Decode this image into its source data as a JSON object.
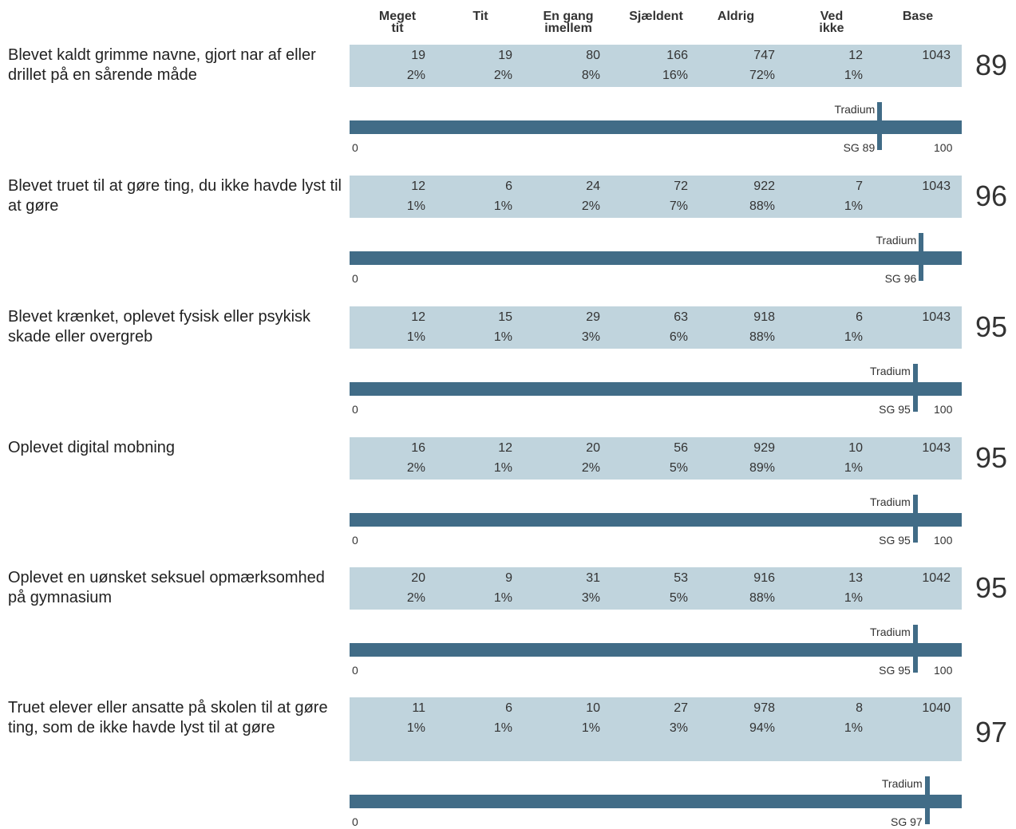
{
  "header": {
    "columns": [
      "Meget\ntit",
      "Tit",
      "En gang\nimellem",
      "Sjældent",
      "Aldrig",
      "Ved\nikke",
      "Base"
    ]
  },
  "reference": {
    "label": "Tradium",
    "axis_min": "0",
    "axis_max": "100"
  },
  "chart_data": {
    "type": "table",
    "columns": [
      "Meget tit",
      "Tit",
      "En gang imellem",
      "Sjældent",
      "Aldrig",
      "Ved ikke",
      "Base"
    ],
    "axis": {
      "min": 0,
      "max": 100
    },
    "rows": [
      {
        "question": "Blevet kaldt grimme navne, gjort nar af eller drillet på en sårende måde",
        "counts": [
          "19",
          "19",
          "80",
          "166",
          "747",
          "12",
          "1043"
        ],
        "percents": [
          "2%",
          "2%",
          "8%",
          "16%",
          "72%",
          "1%"
        ],
        "score": 89,
        "score_label": "89",
        "sg_label": "SG 89"
      },
      {
        "question": "Blevet truet til at gøre ting, du ikke havde lyst til at gøre",
        "counts": [
          "12",
          "6",
          "24",
          "72",
          "922",
          "7",
          "1043"
        ],
        "percents": [
          "1%",
          "1%",
          "2%",
          "7%",
          "88%",
          "1%"
        ],
        "score": 96,
        "score_label": "96",
        "sg_label": "SG 96"
      },
      {
        "question": "Blevet krænket, oplevet fysisk eller psykisk skade eller overgreb",
        "counts": [
          "12",
          "15",
          "29",
          "63",
          "918",
          "6",
          "1043"
        ],
        "percents": [
          "1%",
          "1%",
          "3%",
          "6%",
          "88%",
          "1%"
        ],
        "score": 95,
        "score_label": "95",
        "sg_label": "SG 95"
      },
      {
        "question": "Oplevet digital mobning",
        "counts": [
          "16",
          "12",
          "20",
          "56",
          "929",
          "10",
          "1043"
        ],
        "percents": [
          "2%",
          "1%",
          "2%",
          "5%",
          "89%",
          "1%"
        ],
        "score": 95,
        "score_label": "95",
        "sg_label": "SG 95"
      },
      {
        "question": "Oplevet en uønsket seksuel opmærksomhed på gymnasium",
        "counts": [
          "20",
          "9",
          "31",
          "53",
          "916",
          "13",
          "1042"
        ],
        "percents": [
          "2%",
          "1%",
          "3%",
          "5%",
          "88%",
          "1%"
        ],
        "score": 95,
        "score_label": "95",
        "sg_label": "SG 95"
      },
      {
        "question": "Truet elever eller ansatte på skolen til at gøre ting, som de ikke havde lyst til at gøre",
        "counts": [
          "11",
          "6",
          "10",
          "27",
          "978",
          "8",
          "1040"
        ],
        "percents": [
          "1%",
          "1%",
          "1%",
          "3%",
          "94%",
          "1%"
        ],
        "score": 97,
        "score_label": "97",
        "sg_label": "SG 97"
      }
    ]
  },
  "colors": {
    "band": "#c0d4dd",
    "bar": "#416c87",
    "text": "#333333"
  }
}
